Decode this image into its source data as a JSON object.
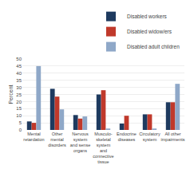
{
  "chart_data": {
    "type": "bar",
    "categories": [
      "Mental\nretardation",
      "Other\nmental\ndisorders",
      "Nervous\nsystem\nand sense\norgans",
      "Musculo-\nskeletal\nsystem\nand\nconnective\ntissue",
      "Endocrine\ndiseases",
      "Circulatory\nsystem",
      "All other\nimpairments"
    ],
    "series": [
      {
        "name": "Disabled workers",
        "color": "#1e3a5f",
        "values": [
          6,
          29,
          10.5,
          25,
          4.5,
          11,
          19.5
        ]
      },
      {
        "name": "Disabled widow/ers",
        "color": "#c0392b",
        "values": [
          5,
          23.5,
          8,
          28,
          10,
          11,
          19.5
        ]
      },
      {
        "name": "Disabled adult children",
        "color": "#8fa8c8",
        "values": [
          45,
          14.5,
          9.5,
          1,
          0,
          1,
          32.5
        ]
      }
    ],
    "ylabel": "Percent",
    "ylim": [
      0,
      50
    ],
    "yticks": [
      0,
      5,
      10,
      15,
      20,
      25,
      30,
      35,
      40,
      45,
      50
    ],
    "grid": true,
    "legend": "upper right"
  }
}
